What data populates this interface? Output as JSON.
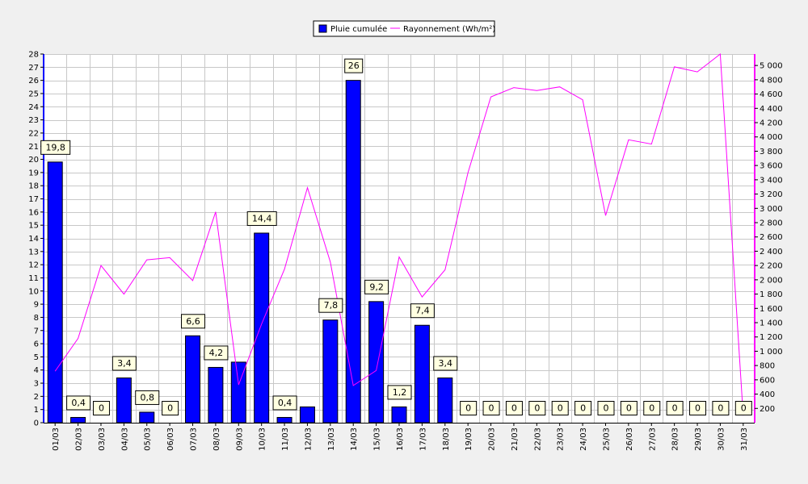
{
  "chart_data": {
    "type": "bar",
    "categories": [
      "01/03",
      "02/03",
      "03/03",
      "04/03",
      "05/03",
      "06/03",
      "07/03",
      "08/03",
      "09/03",
      "10/03",
      "11/03",
      "12/03",
      "13/03",
      "14/03",
      "15/03",
      "16/03",
      "17/03",
      "18/03",
      "19/03",
      "20/03",
      "21/03",
      "22/03",
      "23/03",
      "24/03",
      "25/03",
      "26/03",
      "27/03",
      "28/03",
      "29/03",
      "30/03",
      "31/03"
    ],
    "series": [
      {
        "name": "Pluie cumulée",
        "kind": "bar",
        "axis": "left",
        "color": "#0000ff",
        "values": [
          19.8,
          0.4,
          0,
          3.4,
          0.8,
          0,
          6.6,
          4.2,
          4.6,
          14.4,
          0.4,
          1.2,
          7.8,
          26,
          9.2,
          1.2,
          7.4,
          3.4,
          0,
          0,
          0,
          0,
          0,
          0,
          0,
          0,
          0,
          0,
          0,
          0,
          0
        ],
        "labels": [
          "19,8",
          "0,4",
          "0",
          "3,4",
          "0,8",
          "0",
          "6,6",
          "4,2",
          "",
          "14,4",
          "0,4",
          "",
          "7,8",
          "26",
          "9,2",
          "1,2",
          "7,4",
          "3,4",
          "0",
          "0",
          "0",
          "0",
          "0",
          "0",
          "0",
          "0",
          "0",
          "0",
          "0",
          "0",
          "0"
        ]
      },
      {
        "name": "Rayonnement (Wh/m²)",
        "kind": "line",
        "axis": "right",
        "color": "#ff00ff",
        "values": [
          720,
          1180,
          2200,
          1800,
          2280,
          2310,
          1990,
          2950,
          530,
          1380,
          2150,
          3290,
          2250,
          520,
          730,
          2320,
          1760,
          2140,
          3500,
          4560,
          4690,
          4650,
          4700,
          4520,
          2900,
          3960,
          3900,
          4980,
          4910,
          5160,
          100
        ]
      }
    ],
    "ylim_left": [
      0,
      28
    ],
    "yticks_left": [
      0,
      1,
      2,
      3,
      4,
      5,
      6,
      7,
      8,
      9,
      10,
      11,
      12,
      13,
      14,
      15,
      16,
      17,
      18,
      19,
      20,
      21,
      22,
      23,
      24,
      25,
      26,
      27,
      28
    ],
    "ylim_right": [
      0,
      5160
    ],
    "yticks_right": [
      200,
      400,
      600,
      800,
      1000,
      1200,
      1400,
      1600,
      1800,
      2000,
      2200,
      2400,
      2600,
      2800,
      3000,
      3200,
      3400,
      3600,
      3800,
      4000,
      4200,
      4400,
      4600,
      4800,
      5000
    ],
    "ytick_labels_right": [
      "200",
      "400",
      "600",
      "800",
      "1 000",
      "1 200",
      "1 400",
      "1 600",
      "1 800",
      "2 000",
      "2 200",
      "2 400",
      "2 600",
      "2 800",
      "3 000",
      "3 200",
      "3 400",
      "3 600",
      "3 800",
      "4 000",
      "4 200",
      "4 400",
      "4 600",
      "4 800",
      "5 000"
    ],
    "grid": true,
    "legend_position": "top-center"
  }
}
